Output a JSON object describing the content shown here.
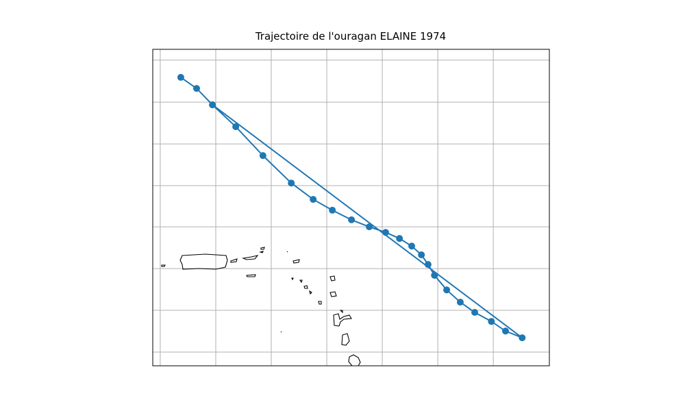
{
  "chart_data": {
    "type": "map-track",
    "title": "Trajectoire de l'ouragan ELAINE 1974",
    "x": [
      -67.26,
      -66.69,
      -66.12,
      -65.28,
      -64.3,
      -63.28,
      -62.49,
      -61.8,
      -61.11,
      -60.47,
      -59.88,
      -59.38,
      -58.94,
      -58.59,
      -58.35,
      -58.12,
      -57.68,
      -57.19,
      -56.67,
      -56.07,
      -55.56,
      -54.96,
      -66.12
    ],
    "series": [
      {
        "color": "#1f77b4",
        "values": [
          24.55,
          24.17,
          23.61,
          22.86,
          21.87,
          20.93,
          20.37,
          20.0,
          19.67,
          19.43,
          19.24,
          19.03,
          18.77,
          18.47,
          18.14,
          17.77,
          17.27,
          16.85,
          16.5,
          16.19,
          15.86,
          15.63,
          23.61
        ]
      }
    ],
    "xlim": [
      -68.27,
      -53.98
    ],
    "ylim": [
      14.67,
      25.51
    ],
    "xticks": [
      -68,
      -66,
      -64,
      -62,
      -60,
      -58,
      -56
    ],
    "yticks": [
      15.14,
      16.57,
      18.0,
      19.43,
      20.84,
      22.27,
      23.7,
      25.14
    ],
    "grid": true
  }
}
